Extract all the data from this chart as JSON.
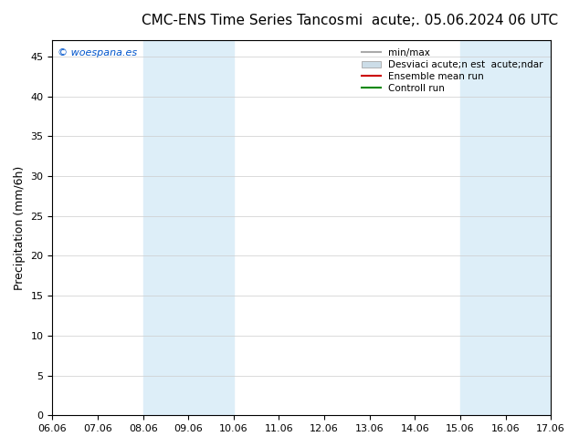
{
  "title_left": "CMC-ENS Time Series Tancos",
  "title_right": "mi  acute;. 05.06.2024 06 UTC",
  "ylabel": "Precipitation (mm/6h)",
  "watermark": "© woespana.es",
  "xlim_min": 0,
  "xlim_max": 11,
  "ylim_min": 0,
  "ylim_max": 47,
  "yticks": [
    0,
    5,
    10,
    15,
    20,
    25,
    30,
    35,
    40,
    45
  ],
  "xtick_labels": [
    "06.06",
    "07.06",
    "08.06",
    "09.06",
    "10.06",
    "11.06",
    "12.06",
    "13.06",
    "14.06",
    "15.06",
    "16.06",
    "17.06"
  ],
  "shaded_bands": [
    {
      "x_start": 2,
      "x_end": 4,
      "color": "#ddeef8"
    },
    {
      "x_start": 9,
      "x_end": 11,
      "color": "#ddeef8"
    }
  ],
  "legend_entries": [
    {
      "label": "min/max",
      "color": "#aaaaaa",
      "linewidth": 1.5,
      "linestyle": "-",
      "type": "line"
    },
    {
      "label": "Desviaci acute;n est  acute;ndar",
      "color": "#ccdde8",
      "type": "patch"
    },
    {
      "label": "Ensemble mean run",
      "color": "#cc0000",
      "linewidth": 1.5,
      "linestyle": "-",
      "type": "line"
    },
    {
      "label": "Controll run",
      "color": "#008800",
      "linewidth": 1.5,
      "linestyle": "-",
      "type": "line"
    }
  ],
  "bg_color": "#ffffff",
  "plot_bg_color": "#ffffff",
  "grid_color": "#cccccc",
  "watermark_color": "#0055cc",
  "watermark_fontsize": 8,
  "tick_fontsize": 8,
  "ylabel_fontsize": 9,
  "title_fontsize": 11
}
